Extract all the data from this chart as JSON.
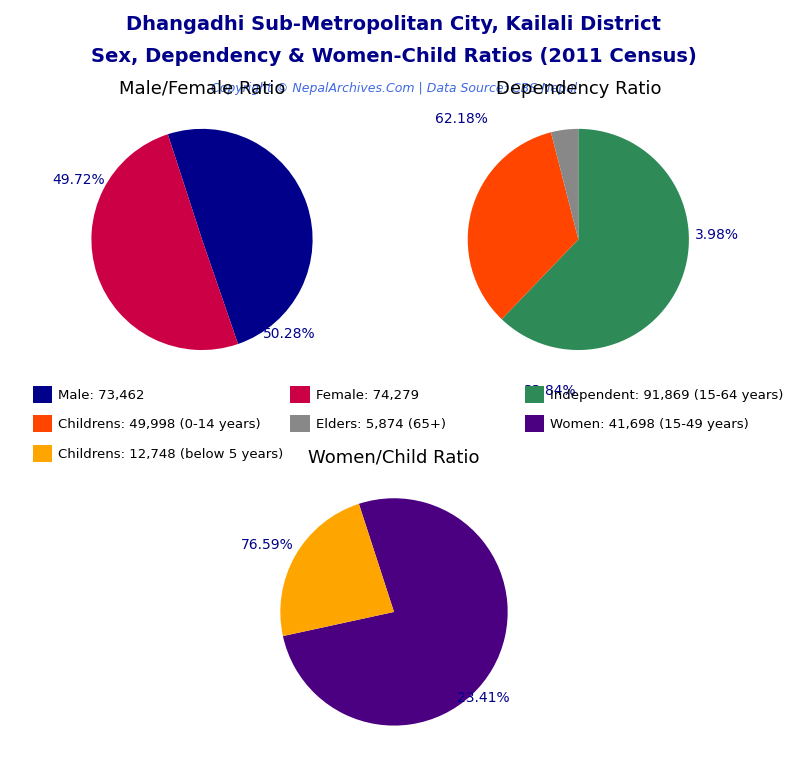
{
  "title_line1": "Dhangadhi Sub-Metropolitan City, Kailali District",
  "title_line2": "Sex, Dependency & Women-Child Ratios (2011 Census)",
  "copyright": "Copyright © NepalArchives.Com | Data Source: CBS Nepal",
  "title_color": "#00008B",
  "copyright_color": "#4169E1",
  "pie1_title": "Male/Female Ratio",
  "pie1_values": [
    49.72,
    50.28
  ],
  "pie1_colors": [
    "#00008B",
    "#CC0044"
  ],
  "pie1_labels": [
    "49.72%",
    "50.28%"
  ],
  "pie1_startangle": 108,
  "pie2_title": "Dependency Ratio",
  "pie2_values": [
    62.18,
    33.84,
    3.98
  ],
  "pie2_colors": [
    "#2E8B57",
    "#FF4500",
    "#888888"
  ],
  "pie2_labels": [
    "62.18%",
    "33.84%",
    "3.98%"
  ],
  "pie2_startangle": 90,
  "pie3_title": "Women/Child Ratio",
  "pie3_values": [
    76.59,
    23.41
  ],
  "pie3_colors": [
    "#4B0082",
    "#FFA500"
  ],
  "pie3_labels": [
    "76.59%",
    "23.41%"
  ],
  "pie3_startangle": 108,
  "legend_items": [
    {
      "label": "Male: 73,462",
      "color": "#00008B"
    },
    {
      "label": "Female: 74,279",
      "color": "#CC0044"
    },
    {
      "label": "Independent: 91,869 (15-64 years)",
      "color": "#2E8B57"
    },
    {
      "label": "Childrens: 49,998 (0-14 years)",
      "color": "#FF4500"
    },
    {
      "label": "Elders: 5,874 (65+)",
      "color": "#888888"
    },
    {
      "label": "Women: 41,698 (15-49 years)",
      "color": "#4B0082"
    },
    {
      "label": "Childrens: 12,748 (below 5 years)",
      "color": "#FFA500"
    }
  ],
  "bg_color": "#FFFFFF",
  "label_color": "#00008B",
  "pie_title_color": "#000000",
  "pie_title_fontsize": 13,
  "label_fontsize": 10
}
